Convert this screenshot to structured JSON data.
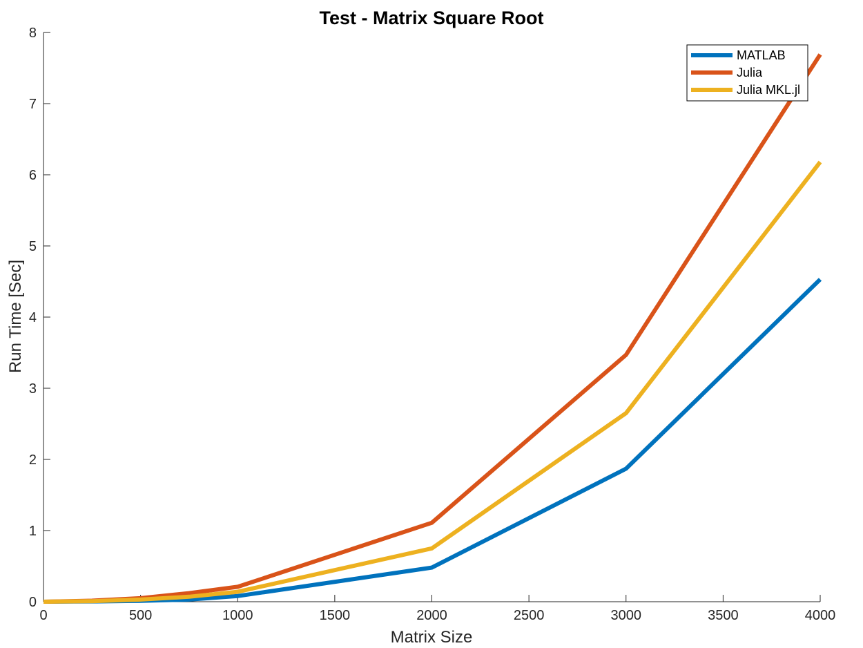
{
  "chart_data": {
    "type": "line",
    "title": "Test - Matrix Square Root",
    "xlabel": "Matrix Size",
    "ylabel": "Run Time  [Sec]",
    "xlim": [
      0,
      4000
    ],
    "ylim": [
      0,
      8
    ],
    "xticks": [
      "0",
      "500",
      "1000",
      "1500",
      "2000",
      "2500",
      "3000",
      "3500",
      "4000"
    ],
    "yticks": [
      "0",
      "1",
      "2",
      "3",
      "4",
      "5",
      "6",
      "7",
      "8"
    ],
    "grid": false,
    "legend_position": "top-right",
    "x": [
      0,
      250,
      500,
      750,
      1000,
      2000,
      3000,
      4000
    ],
    "series": [
      {
        "name": "MATLAB",
        "color": "#0072BD",
        "values": [
          0,
          0.004,
          0.012,
          0.03,
          0.08,
          0.48,
          1.87,
          4.53
        ]
      },
      {
        "name": "Julia",
        "color": "#D95319",
        "values": [
          0,
          0.015,
          0.05,
          0.12,
          0.21,
          1.11,
          3.47,
          7.69
        ]
      },
      {
        "name": "Julia MKL.jl",
        "color": "#EDB120",
        "values": [
          0,
          0.008,
          0.03,
          0.07,
          0.14,
          0.75,
          2.65,
          6.18
        ]
      }
    ]
  }
}
